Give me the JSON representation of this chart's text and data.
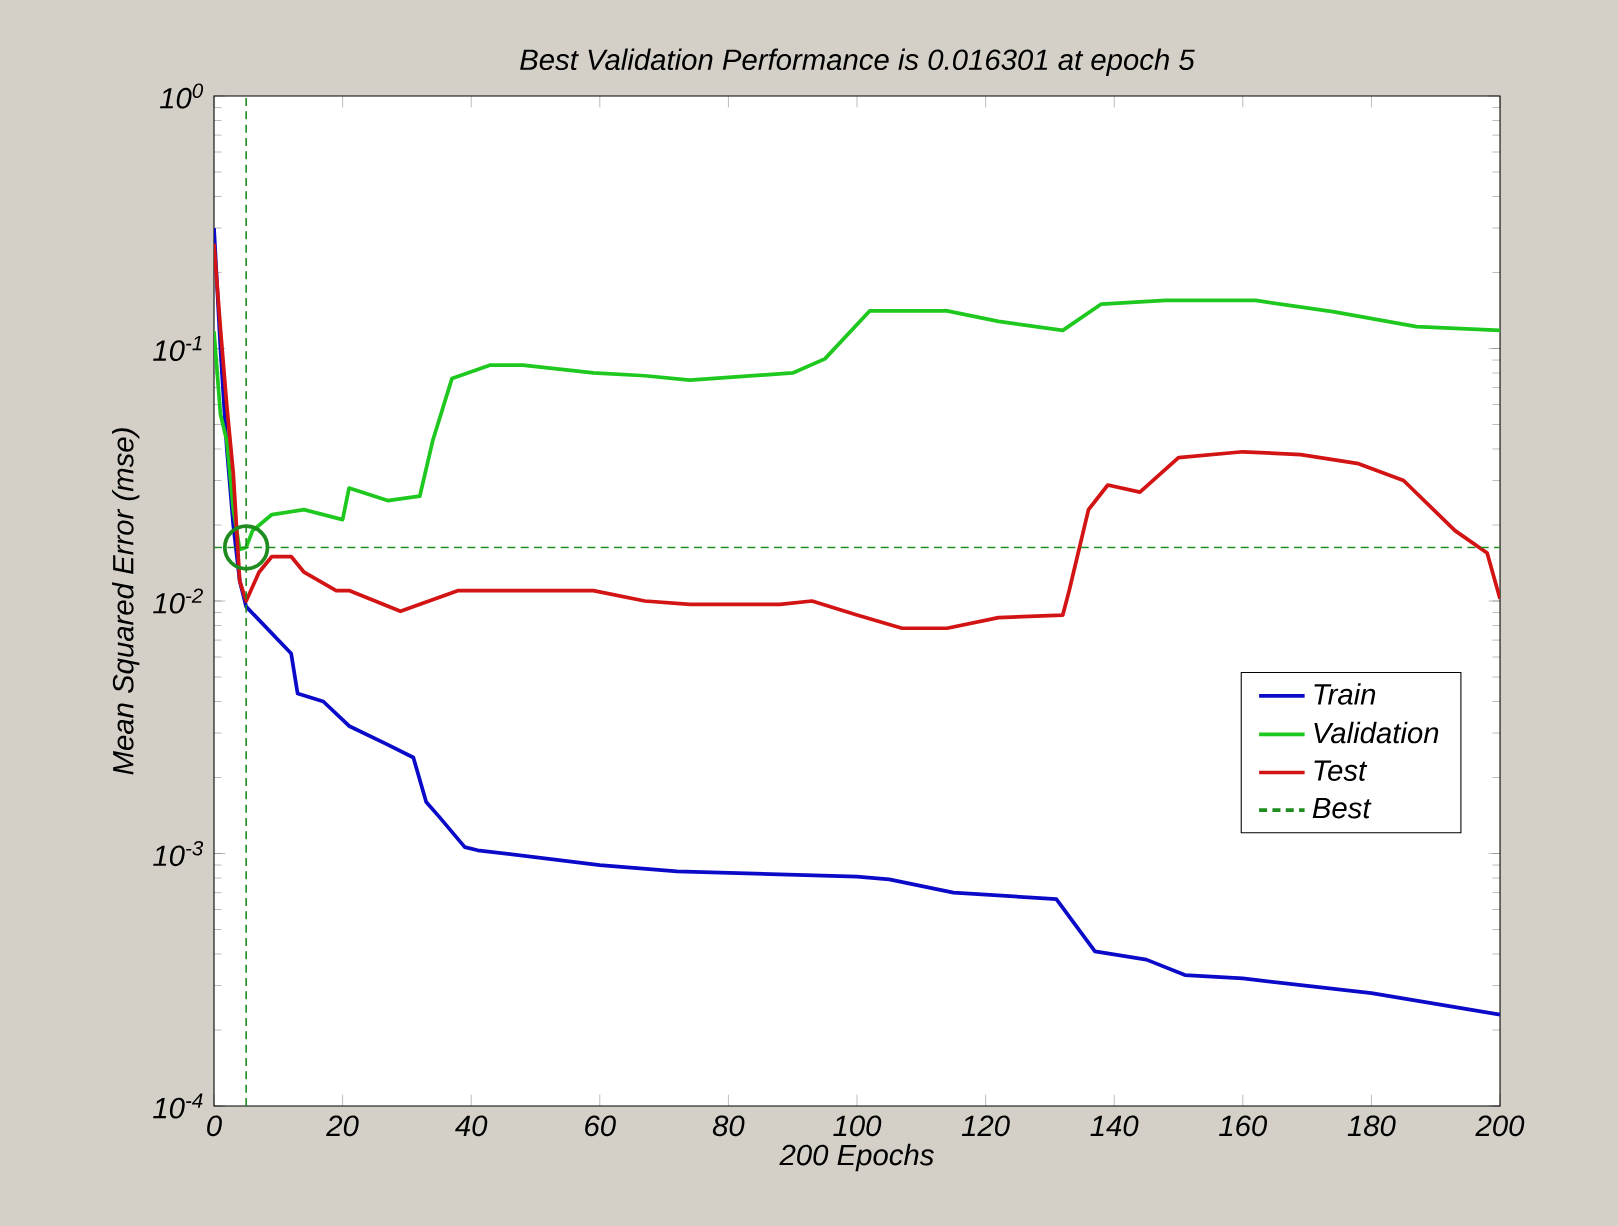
{
  "chart_data": {
    "type": "line",
    "title": "Best Validation Performance is 0.016301 at epoch 5",
    "xlabel": "200 Epochs",
    "ylabel": "Mean Squared Error  (mse)",
    "log": "y",
    "grid": false,
    "legend": "bottom right",
    "xlim": [
      0,
      200
    ],
    "xticks": [
      0,
      20,
      40,
      60,
      80,
      100,
      120,
      140,
      160,
      180,
      200
    ],
    "ylim": [
      0.0001,
      1
    ],
    "ref_lines": [
      {
        "axis": "x",
        "value": 5,
        "color": "#1e8c1e",
        "line_style": "dashed"
      }
    ],
    "yticks": [
      {
        "value": 0.0001,
        "label": "10$^{-4}$"
      },
      {
        "value": 0.001,
        "label": "10$^{-3}$"
      },
      {
        "value": 0.01,
        "label": "10$^{-2}$"
      },
      {
        "value": 0.1,
        "label": "10$^{-1}$"
      },
      {
        "value": 1,
        "label": "10$^{0}$"
      }
    ],
    "series": [
      {
        "name": "Train",
        "color": "#0a0ac8",
        "x": [
          0,
          1,
          2,
          3,
          4,
          5,
          12,
          13,
          17,
          21,
          27,
          31,
          33,
          35,
          39,
          41,
          60,
          72,
          100,
          105,
          115,
          131,
          137,
          145,
          151,
          160,
          180,
          200
        ],
        "values": [
          0.3,
          0.1,
          0.04,
          0.02,
          0.012,
          0.0095,
          0.0062,
          0.0043,
          0.004,
          0.0032,
          0.0027,
          0.0024,
          0.0016,
          0.0014,
          0.00106,
          0.00103,
          0.0009,
          0.00085,
          0.00081,
          0.00079,
          0.0007,
          0.00066,
          0.00041,
          0.00038,
          0.00033,
          0.00032,
          0.00028,
          0.00023
        ]
      },
      {
        "name": "Validation",
        "color": "#1ec81e",
        "x": [
          0,
          1,
          2,
          3,
          4,
          5,
          6,
          9,
          14,
          20,
          21,
          27,
          32,
          34,
          37,
          43,
          48,
          59,
          67,
          74,
          90,
          95,
          102,
          114,
          122,
          132,
          138,
          148,
          162,
          174,
          187,
          200
        ],
        "values": [
          0.117,
          0.055,
          0.043,
          0.023,
          0.016,
          0.016301,
          0.019,
          0.022,
          0.023,
          0.021,
          0.028,
          0.025,
          0.026,
          0.043,
          0.076,
          0.086,
          0.086,
          0.08,
          0.078,
          0.075,
          0.08,
          0.091,
          0.141,
          0.141,
          0.128,
          0.118,
          0.15,
          0.155,
          0.155,
          0.14,
          0.122,
          0.118
        ]
      },
      {
        "name": "Test",
        "color": "#d21414",
        "x": [
          0,
          1,
          2,
          3,
          4,
          5,
          7,
          9,
          12,
          14,
          19,
          21,
          29,
          38,
          48,
          59,
          67,
          74,
          88,
          93,
          100,
          107,
          114,
          122,
          132,
          133,
          136,
          139,
          144,
          150,
          160,
          169,
          178,
          185,
          193,
          198,
          200
        ],
        "values": [
          0.26,
          0.12,
          0.059,
          0.032,
          0.012,
          0.01,
          0.013,
          0.015,
          0.015,
          0.013,
          0.011,
          0.011,
          0.0091,
          0.011,
          0.011,
          0.011,
          0.01,
          0.0097,
          0.0097,
          0.01,
          0.0088,
          0.0078,
          0.0078,
          0.0086,
          0.0088,
          0.011,
          0.023,
          0.0288,
          0.027,
          0.037,
          0.039,
          0.038,
          0.035,
          0.03,
          0.019,
          0.0155,
          0.0102
        ]
      },
      {
        "name": "Best",
        "color": "#1e8c1e",
        "line_style": "dashed",
        "x": [
          0,
          200
        ],
        "values": [
          0.016301,
          0.016301
        ]
      },
      {
        "type": "scatter",
        "marker": "circle",
        "color": "#1e8c1e",
        "x": [
          5
        ],
        "values": [
          0.016301
        ]
      }
    ]
  }
}
